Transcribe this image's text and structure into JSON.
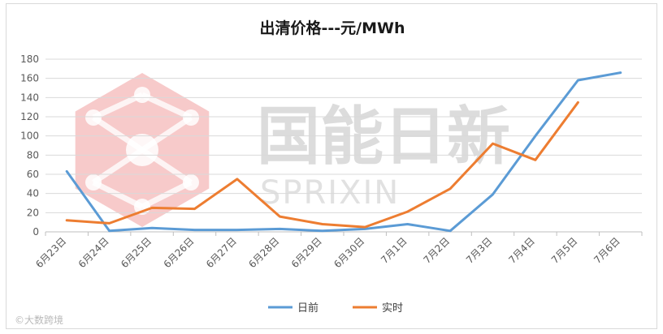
{
  "chart_data": {
    "type": "line",
    "title": "出清价格---元/MWh",
    "categories": [
      "6月23日",
      "6月24日",
      "6月25日",
      "6月26日",
      "6月27日",
      "6月28日",
      "6月29日",
      "6月30日",
      "7月1日",
      "7月2日",
      "7月3日",
      "7月4日",
      "7月5日",
      "7月6日"
    ],
    "series": [
      {
        "name": "日前",
        "color": "#5b9bd5",
        "values": [
          63,
          1,
          4,
          2,
          2,
          3,
          1,
          3,
          8,
          1,
          39,
          100,
          158,
          166
        ]
      },
      {
        "name": "实时",
        "color": "#ed7d31",
        "values": [
          12,
          9,
          25,
          24,
          55,
          16,
          8,
          5,
          21,
          45,
          92,
          75,
          135,
          null
        ]
      }
    ],
    "ylim": [
      0,
      180
    ],
    "yticks": [
      0,
      20,
      40,
      60,
      80,
      100,
      120,
      140,
      160,
      180
    ],
    "grid": true,
    "legend": "bottom"
  },
  "watermark": {
    "cn": "国能日新",
    "en": "SPRIXIN",
    "logo_color": "#f2a7a7"
  },
  "credit": "大数跨境"
}
